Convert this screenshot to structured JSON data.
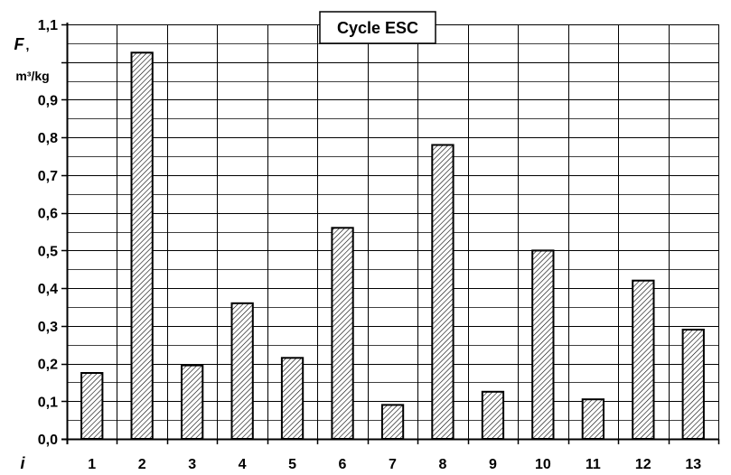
{
  "chart_data": {
    "type": "bar",
    "title": "Cycle ESC",
    "ylabel_var": "F",
    "ylabel_sep": ",",
    "ylabel_unit": "m³/kg",
    "xlabel_var": "i",
    "ylim": [
      0,
      1.1
    ],
    "yticks": [
      "0,0",
      "0,1",
      "0,2",
      "0,3",
      "0,4",
      "0,5",
      "0,6",
      "0,7",
      "0,8",
      "0,9",
      "1,1"
    ],
    "categories": [
      "1",
      "2",
      "3",
      "4",
      "5",
      "6",
      "7",
      "8",
      "9",
      "10",
      "11",
      "12",
      "13"
    ],
    "values": [
      0.175,
      1.025,
      0.195,
      0.36,
      0.215,
      0.56,
      0.09,
      0.78,
      0.125,
      0.5,
      0.105,
      0.42,
      0.29
    ],
    "bar_fill": "hatched",
    "grid": true,
    "colors": {
      "bar_stroke": "#000000",
      "hatch": "#000000",
      "grid": "#000000",
      "background": "#ffffff"
    }
  }
}
